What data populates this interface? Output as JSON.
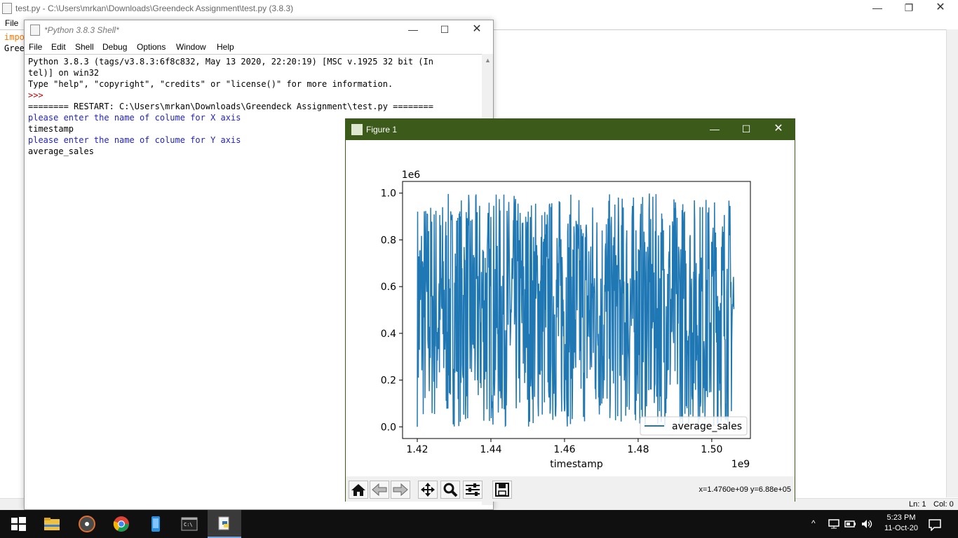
{
  "editor": {
    "title": "test.py - C:\\Users\\mrkan\\Downloads\\Greendeck Assignment\\test.py (3.8.3)",
    "menu_file": "File",
    "code_line1": "impo",
    "code_line2": "Gree",
    "status_ln": "Ln: 1",
    "status_col": "Col: 0"
  },
  "shell": {
    "title": "*Python 3.8.3 Shell*",
    "menu": [
      "File",
      "Edit",
      "Shell",
      "Debug",
      "Options",
      "Window",
      "Help"
    ],
    "lines": [
      "Python 3.8.3 (tags/v3.8.3:6f8c832, May 13 2020, 22:20:19) [MSC v.1925 32 bit (In",
      "tel)] on win32",
      "Type \"help\", \"copyright\", \"credits\" or \"license()\" for more information.",
      ">>> ",
      "======== RESTART: C:\\Users\\mrkan\\Downloads\\Greendeck Assignment\\test.py ========",
      "please enter the name of colume for X axis",
      "timestamp",
      "please enter the name of colume for Y axis",
      "average_sales"
    ]
  },
  "figure": {
    "title": "Figure 1",
    "coords": "x=1.4760e+09 y=6.88e+05"
  },
  "chart_data": {
    "type": "line",
    "title": "",
    "xlabel": "timestamp",
    "ylabel": "",
    "x_offset_label": "1e9",
    "y_offset_label": "1e6",
    "xlim": [
      1.416,
      1.5105
    ],
    "ylim": [
      -0.05,
      1.05
    ],
    "xticks": [
      1.42,
      1.44,
      1.46,
      1.48,
      1.5
    ],
    "xtick_labels": [
      "1.42",
      "1.44",
      "1.46",
      "1.48",
      "1.50"
    ],
    "yticks": [
      0.0,
      0.2,
      0.4,
      0.6,
      0.8,
      1.0
    ],
    "ytick_labels": [
      "0.0",
      "0.2",
      "0.4",
      "0.6",
      "0.8",
      "1.0"
    ],
    "x_range": [
      1.42,
      1.506
    ],
    "y_range": [
      0.0,
      1.0
    ],
    "color": "#1f77b4",
    "grid": false,
    "legend": "lower right",
    "series": [
      {
        "name": "average_sales"
      }
    ]
  },
  "taskbar": {
    "time": "5:23 PM",
    "date": "11-Oct-20"
  }
}
